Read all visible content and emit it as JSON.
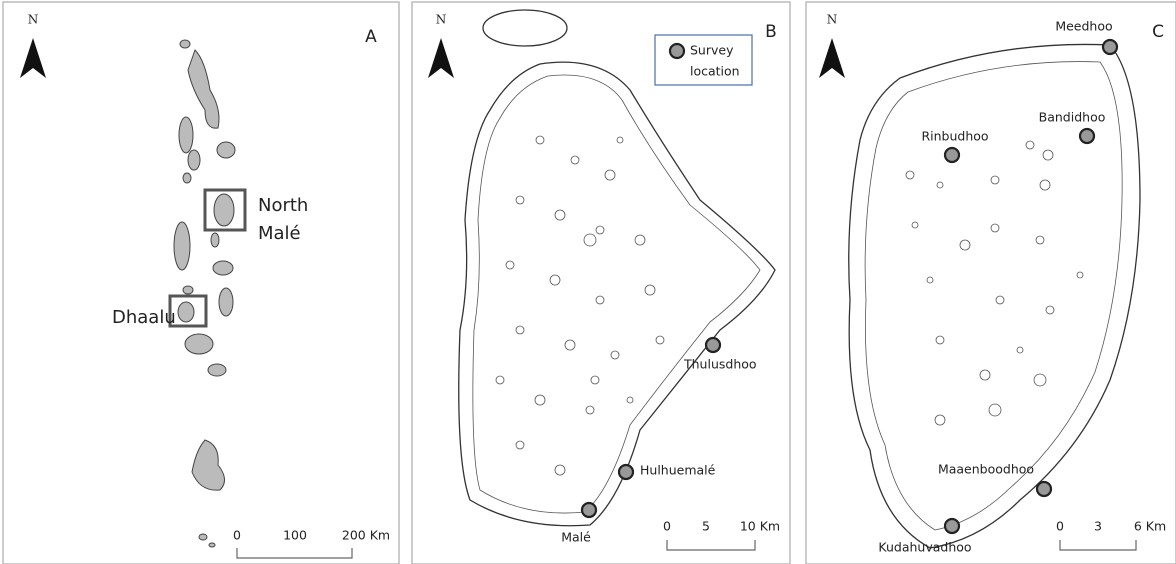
{
  "panels": [
    {
      "letter": "A",
      "north": "N",
      "boxes": [
        {
          "label_lines": [
            "North",
            "Malé"
          ]
        },
        {
          "label_lines": [
            "Dhaalu"
          ]
        }
      ],
      "scale": [
        "0",
        "100",
        "200 Km"
      ]
    },
    {
      "letter": "B",
      "north": "N",
      "legend": [
        "Survey",
        "location"
      ],
      "sites": [
        "Thulusdhoo",
        "Hulhuemalé",
        "Malé"
      ],
      "scale": [
        "0",
        "5",
        "10 Km"
      ]
    },
    {
      "letter": "C",
      "north": "N",
      "sites": [
        "Meedhoo",
        "Bandidhoo",
        "Rinbudhoo",
        "Maaenboodhoo",
        "Kudahuvadhoo"
      ],
      "scale": [
        "0",
        "3",
        "6 Km"
      ]
    }
  ]
}
